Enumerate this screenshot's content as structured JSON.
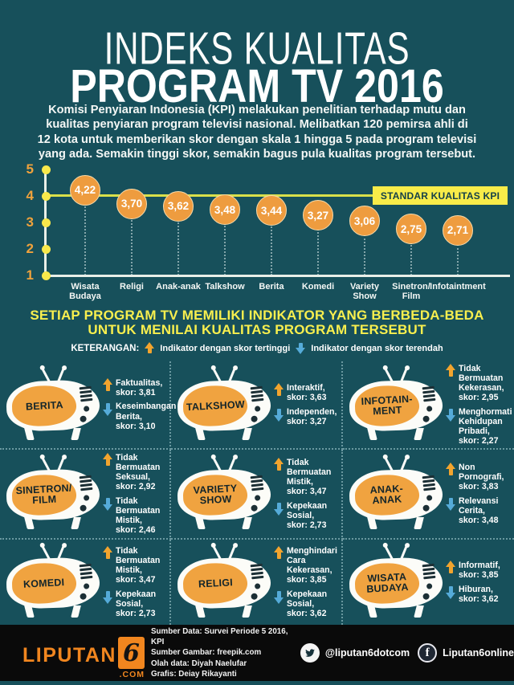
{
  "header": {
    "title_line1": "INDEKS KUALITAS",
    "title_line2": "PROGRAM TV 2016",
    "intro": "Komisi Penyiaran Indonesia (KPI) melakukan penelitian terhadap mutu dan\nkualitas penyiaran program televisi nasional. Melibatkan 120 pemirsa ahli di\n12 kota untuk memberikan skor dengan skala 1 hingga 5 pada program televisi\nyang ada. Semakin tinggi skor, semakin bagus pula kualitas program tersebut."
  },
  "chart_data": {
    "type": "scatter",
    "title": "Indeks Kualitas Program TV 2016",
    "categories": [
      "Wisata\nBudaya",
      "Religi",
      "Anak-anak",
      "Talkshow",
      "Berita",
      "Komedi",
      "Variety\nShow",
      "Sinetron/\nFilm",
      "Infotaintment"
    ],
    "values": [
      4.22,
      3.7,
      3.62,
      3.48,
      3.44,
      3.27,
      3.06,
      2.75,
      2.71
    ],
    "value_labels": [
      "4,22",
      "3,70",
      "3,62",
      "3,48",
      "3,44",
      "3,27",
      "3,06",
      "2,75",
      "2,71"
    ],
    "yticks": [
      5,
      4,
      3,
      2,
      1
    ],
    "ylim": [
      1,
      5
    ],
    "standard_value": 4,
    "standard_label": "STANDAR KUALITAS KPI",
    "xlabel": "",
    "ylabel": "",
    "grid": false,
    "legend_position": "none",
    "colors": {
      "point": "#ee9c3f",
      "standard_line": "#d9e04a",
      "standard_box": "#f8ec49",
      "tick_dot": "#f8e84b",
      "tick_num": "#f0a23c"
    }
  },
  "section2": {
    "heading": "SETIAP PROGRAM TV MEMILIKI INDIKATOR YANG  BERBEDA-BEDA\nUNTUK MENILAI KUALITAS PROGRAM TERSEBUT",
    "legend_label": "KETERANGAN:",
    "legend_high": "Indikator dengan skor tertinggi",
    "legend_low": "Indikator dengan skor terendah"
  },
  "programs": [
    {
      "label": "BERITA",
      "high": "Faktualitas,\nskor: 3,81",
      "low": "Keseimbangan\nBerita,\nskor: 3,10"
    },
    {
      "label": "TALKSHOW",
      "high": "Interaktif,\nskor: 3,63",
      "low": "Independen,\nskor: 3,27"
    },
    {
      "label": "INFOTAIN-\nMENT",
      "high": "Tidak\nBermuatan\nKekerasan,\nskor: 2,95",
      "low": "Menghormati\nKehidupan\nPribadi,\nskor: 2,27"
    },
    {
      "label": "SINETRON/\nFILM",
      "high": "Tidak\nBermuatan\nSeksual,\nskor: 2,92",
      "low": "Tidak\nBermuatan\nMistik,\nskor: 2,46"
    },
    {
      "label": "VARIETY\nSHOW",
      "high": "Tidak\nBermuatan\nMistik,\nskor: 3,47",
      "low": "Kepekaan\nSosial,\nskor: 2,73"
    },
    {
      "label": "ANAK-\nANAK",
      "high": "Non\nPornografi,\nskor: 3,83",
      "low": "Relevansi\nCerita,\nskor: 3,48"
    },
    {
      "label": "KOMEDI",
      "high": "Tidak\nBermuatan\nMistik,\nskor: 3,47",
      "low": "Kepekaan\nSosial,\nskor: 2,73"
    },
    {
      "label": "RELIGI",
      "high": "Menghindari\nCara\nKekerasan,\nskor: 3,85",
      "low": "Kepekaan\nSosial,\nskor: 3,62"
    },
    {
      "label": "WISATA\nBUDAYA",
      "high": "Informatif,\nskor: 3,85",
      "low": "Hiburan,\nskor: 3,62"
    }
  ],
  "footer": {
    "logo": {
      "name": "LIPUTAN",
      "six": "6",
      "com": ".COM"
    },
    "credits": "Sumber Data: Survei Periode 5 2016, KPI\nSumber Gambar: freepik.com\nOlah data: Diyah Naelufar\nGrafis: Deiay Rikayanti",
    "social": {
      "twitter": "@liputan6dotcom",
      "facebook": "Liputan6online",
      "fb_icon_letter": "f"
    }
  }
}
